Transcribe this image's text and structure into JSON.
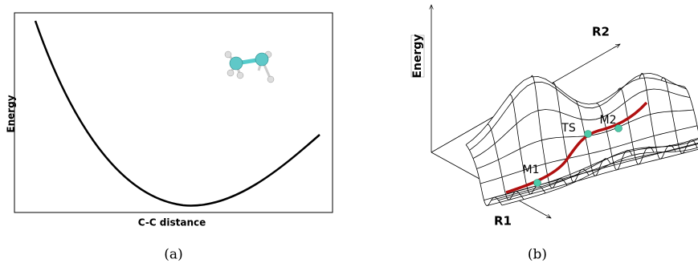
{
  "panel_a": {
    "y_label": "Energy",
    "x_label": "C-C distance",
    "caption": "(a)"
  },
  "panel_b": {
    "z_label": "Energy",
    "axis_r1": "R1",
    "axis_r2": "R2",
    "points": [
      "M1",
      "TS",
      "M2"
    ],
    "caption": "(b)"
  }
}
